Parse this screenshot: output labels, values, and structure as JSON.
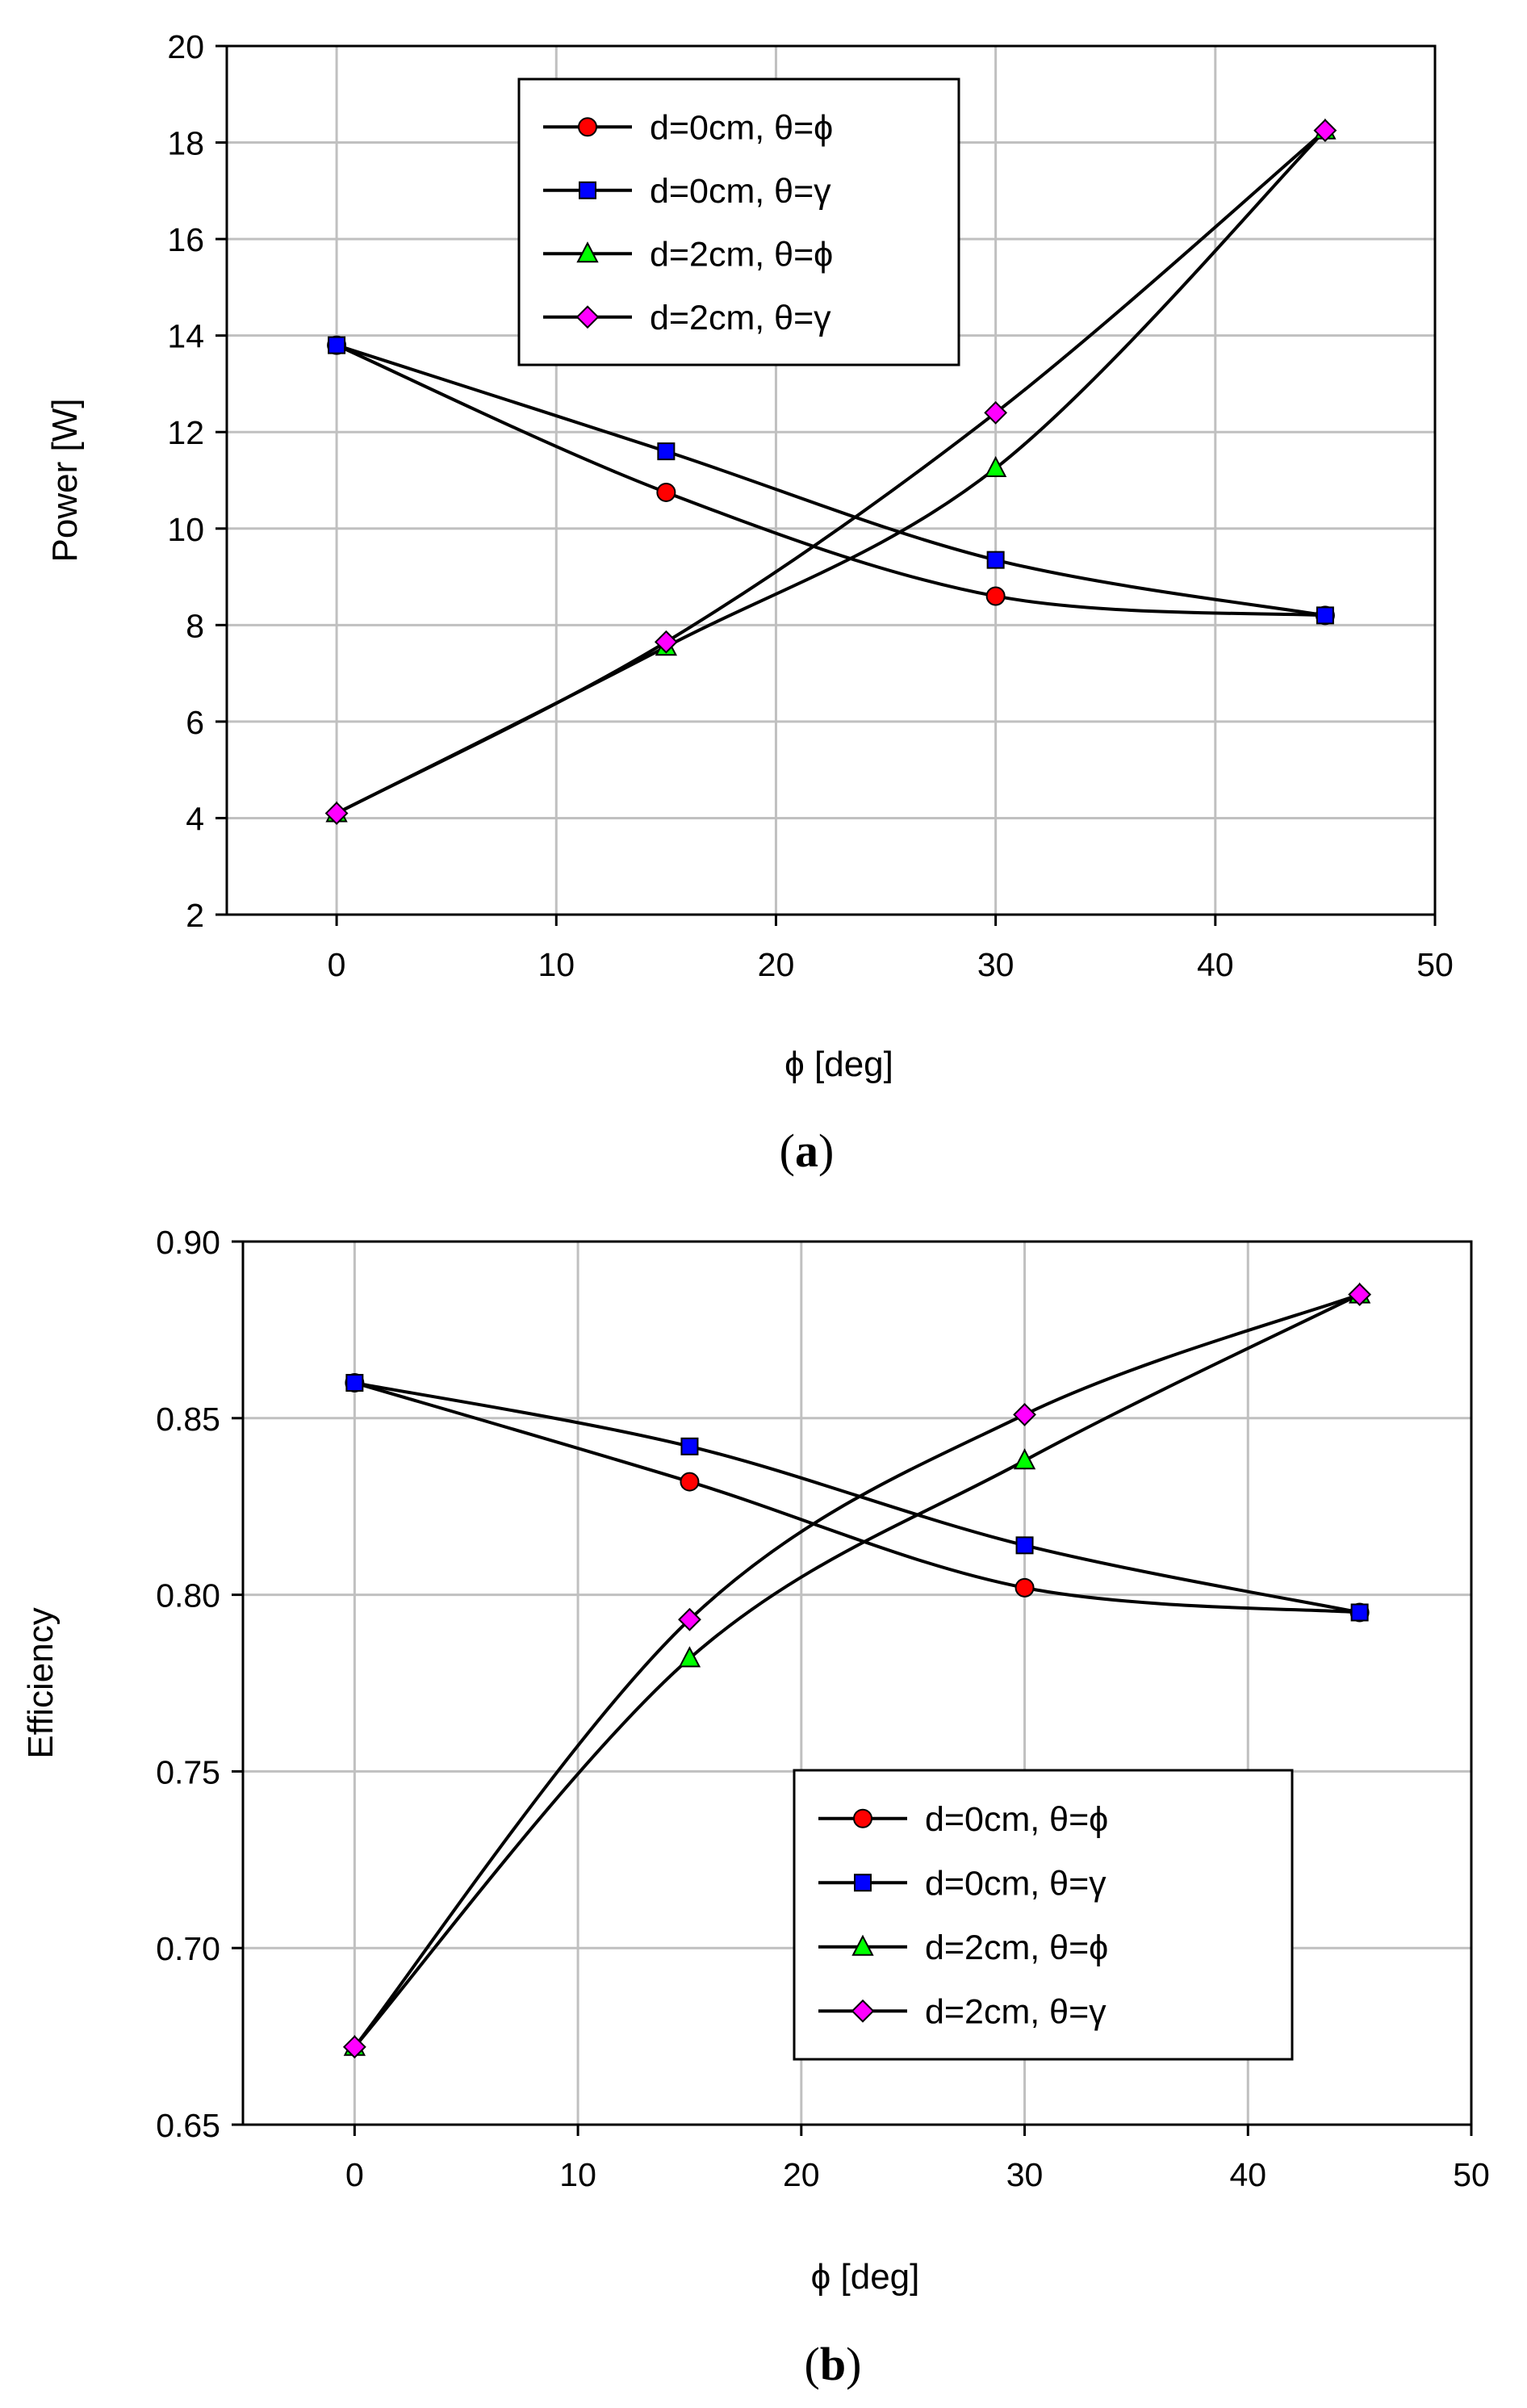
{
  "chart_data": [
    {
      "type": "line",
      "caption_letter": "a",
      "title": "",
      "xlabel": "ϕ [deg]",
      "ylabel": "Power [W]",
      "xlim": [
        -5,
        50
      ],
      "ylim": [
        2,
        20
      ],
      "xticks": [
        0,
        10,
        20,
        30,
        40,
        50
      ],
      "yticks": [
        2,
        4,
        6,
        8,
        10,
        12,
        14,
        16,
        18,
        20
      ],
      "tick_decimals": 0,
      "grid": true,
      "legend_position": "top-center",
      "x": [
        0,
        15,
        30,
        45
      ],
      "series": [
        {
          "name": "d=0cm, θ=ϕ",
          "marker": "circle",
          "color": "#ff0000",
          "values": [
            13.8,
            10.75,
            8.6,
            8.2
          ]
        },
        {
          "name": "d=0cm, θ=γ",
          "marker": "square",
          "color": "#0000ff",
          "values": [
            13.8,
            11.6,
            9.35,
            8.2
          ]
        },
        {
          "name": "d=2cm, θ=ϕ",
          "marker": "triangle",
          "color": "#00ff00",
          "values": [
            4.1,
            7.55,
            11.25,
            18.25
          ]
        },
        {
          "name": "d=2cm, θ=γ",
          "marker": "diamond",
          "color": "#ff00ff",
          "values": [
            4.1,
            7.65,
            12.4,
            18.25
          ]
        }
      ]
    },
    {
      "type": "line",
      "caption_letter": "b",
      "title": "",
      "xlabel": "ϕ [deg]",
      "ylabel": "Efficiency",
      "xlim": [
        -5,
        50
      ],
      "ylim": [
        0.65,
        0.9
      ],
      "xticks": [
        0,
        10,
        20,
        30,
        40,
        50
      ],
      "yticks": [
        0.65,
        0.7,
        0.75,
        0.8,
        0.85,
        0.9
      ],
      "tick_decimals": 2,
      "grid": true,
      "legend_position": "bottom-right",
      "x": [
        0,
        15,
        30,
        45
      ],
      "series": [
        {
          "name": "d=0cm, θ=ϕ",
          "marker": "circle",
          "color": "#ff0000",
          "values": [
            0.86,
            0.832,
            0.802,
            0.795
          ]
        },
        {
          "name": "d=0cm, θ=γ",
          "marker": "square",
          "color": "#0000ff",
          "values": [
            0.86,
            0.842,
            0.814,
            0.795
          ]
        },
        {
          "name": "d=2cm, θ=ϕ",
          "marker": "triangle",
          "color": "#00ff00",
          "values": [
            0.672,
            0.782,
            0.838,
            0.885
          ]
        },
        {
          "name": "d=2cm, θ=γ",
          "marker": "diamond",
          "color": "#ff00ff",
          "values": [
            0.672,
            0.793,
            0.851,
            0.885
          ]
        }
      ]
    }
  ]
}
